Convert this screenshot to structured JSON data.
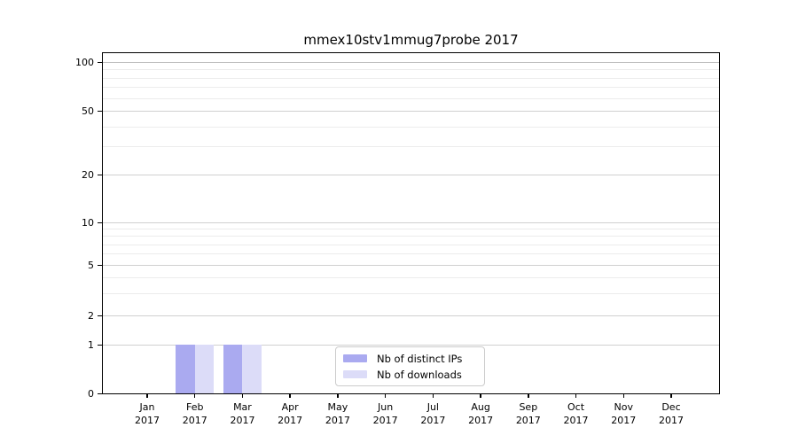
{
  "figure": {
    "title": "mmex10stv1mmug7probe 2017",
    "background_color": "#ffffff"
  },
  "legend": {
    "items": [
      {
        "label": "Nb of distinct IPs",
        "color": "#aaaaf0"
      },
      {
        "label": "Nb of downloads",
        "color": "#dcdcf8"
      }
    ]
  },
  "axes": {
    "y_major_ticks": [
      100,
      50,
      20,
      10,
      5,
      2,
      1,
      0
    ],
    "y_minor_values": [
      90,
      80,
      70,
      60,
      40,
      30,
      9,
      8,
      7,
      6,
      4,
      3
    ],
    "x_ticks": [
      {
        "month": "Jan",
        "year": "2017"
      },
      {
        "month": "Feb",
        "year": "2017"
      },
      {
        "month": "Mar",
        "year": "2017"
      },
      {
        "month": "Apr",
        "year": "2017"
      },
      {
        "month": "May",
        "year": "2017"
      },
      {
        "month": "Jun",
        "year": "2017"
      },
      {
        "month": "Jul",
        "year": "2017"
      },
      {
        "month": "Aug",
        "year": "2017"
      },
      {
        "month": "Sep",
        "year": "2017"
      },
      {
        "month": "Oct",
        "year": "2017"
      },
      {
        "month": "Nov",
        "year": "2017"
      },
      {
        "month": "Dec",
        "year": "2017"
      }
    ]
  },
  "chart_data": {
    "type": "bar",
    "title": "mmex10stv1mmug7probe 2017",
    "categories": [
      "Jan 2017",
      "Feb 2017",
      "Mar 2017",
      "Apr 2017",
      "May 2017",
      "Jun 2017",
      "Jul 2017",
      "Aug 2017",
      "Sep 2017",
      "Oct 2017",
      "Nov 2017",
      "Dec 2017"
    ],
    "series": [
      {
        "name": "Nb of distinct IPs",
        "color": "#aaaaf0",
        "values": [
          0,
          1,
          1,
          0,
          0,
          0,
          0,
          0,
          0,
          0,
          0,
          0
        ]
      },
      {
        "name": "Nb of downloads",
        "color": "#dcdcf8",
        "values": [
          0,
          1,
          1,
          0,
          0,
          0,
          0,
          0,
          0,
          0,
          0,
          0
        ]
      }
    ],
    "xlabel": "",
    "ylabel": "",
    "y_scale": "symlog-like (0,1,2,5,10,20,50,100)",
    "ylim": [
      0,
      120
    ],
    "grid": "horizontal major and log-minor gridlines",
    "legend_position": "lower center inside plot"
  }
}
